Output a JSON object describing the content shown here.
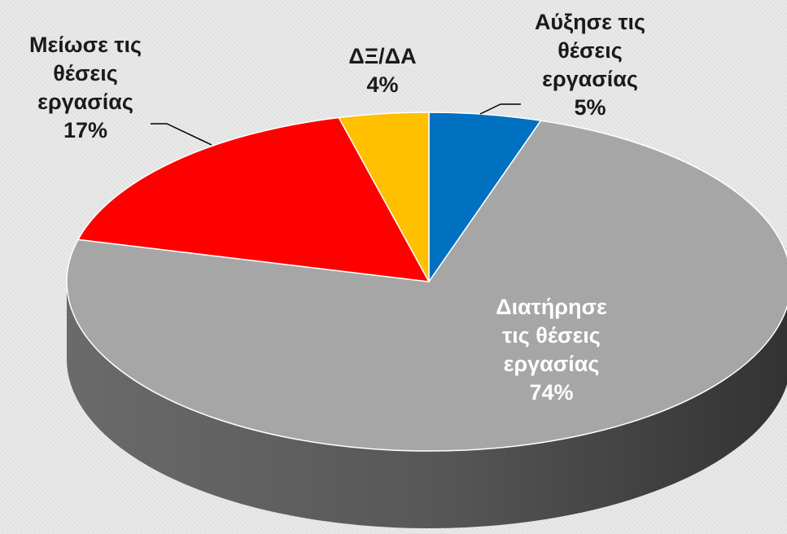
{
  "chart_data": {
    "type": "pie",
    "categories": [
      "Αύξησε τις θέσεις εργασίας",
      "Διατήρησε τις θέσεις εργασίας",
      "Μείωσε τις θέσεις εργασίας",
      "ΔΞ/ΔΑ"
    ],
    "values": [
      5,
      74,
      17,
      4
    ],
    "value_labels": [
      "5%",
      "74%",
      "17%",
      "4%"
    ],
    "colors": [
      "#0070c0",
      "#a6a6a6",
      "#ff0000",
      "#ffc000"
    ]
  }
}
